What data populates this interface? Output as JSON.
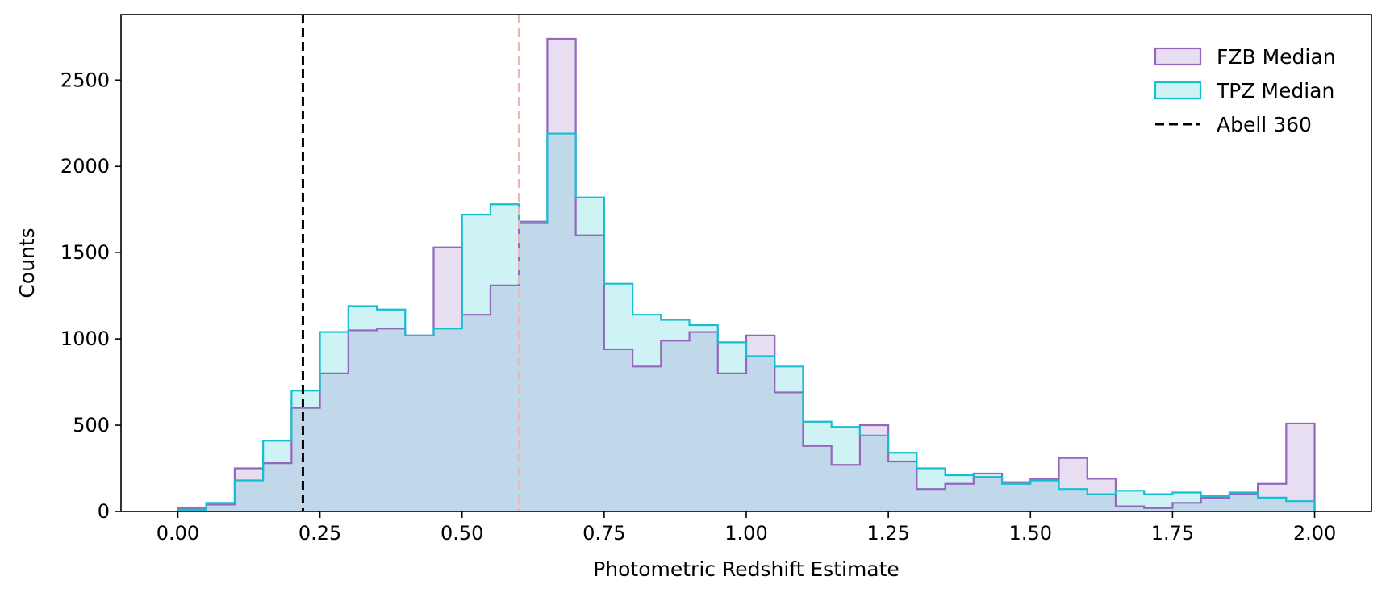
{
  "chart_data": {
    "type": "histogram",
    "title": "",
    "xlabel": "Photometric Redshift Estimate",
    "ylabel": "Counts",
    "xlim": [
      -0.1,
      2.1
    ],
    "ylim": [
      0,
      2880
    ],
    "xticks": [
      "0.00",
      "0.25",
      "0.50",
      "0.75",
      "1.00",
      "1.25",
      "1.50",
      "1.75",
      "2.00"
    ],
    "yticks": [
      "0",
      "500",
      "1000",
      "1500",
      "2000",
      "2500"
    ],
    "bin_edges": [
      0.0,
      0.05,
      0.1,
      0.15,
      0.2,
      0.25,
      0.3,
      0.35,
      0.4,
      0.45,
      0.5,
      0.55,
      0.6,
      0.65,
      0.7,
      0.75,
      0.8,
      0.85,
      0.9,
      0.95,
      1.0,
      1.05,
      1.1,
      1.15,
      1.2,
      1.25,
      1.3,
      1.35,
      1.4,
      1.45,
      1.5,
      1.55,
      1.6,
      1.65,
      1.7,
      1.75,
      1.8,
      1.85,
      1.9,
      1.95,
      2.0
    ],
    "series": [
      {
        "name": "FZB Median",
        "edge_color": "#9467bd",
        "fill_color": "#e8def1",
        "values": [
          20,
          40,
          250,
          280,
          600,
          800,
          1050,
          1060,
          1020,
          1530,
          1140,
          1310,
          1680,
          2740,
          1600,
          940,
          840,
          990,
          1040,
          800,
          1020,
          690,
          380,
          270,
          500,
          290,
          130,
          160,
          220,
          170,
          190,
          310,
          190,
          30,
          20,
          50,
          80,
          100,
          160,
          510
        ]
      },
      {
        "name": "TPZ Median",
        "edge_color": "#17becf",
        "fill_color": "#cff3f5",
        "values": [
          10,
          50,
          180,
          410,
          700,
          1040,
          1190,
          1170,
          1020,
          1060,
          1720,
          1780,
          1670,
          2190,
          1820,
          1320,
          1140,
          1110,
          1080,
          980,
          900,
          840,
          520,
          490,
          440,
          340,
          250,
          210,
          200,
          160,
          180,
          130,
          100,
          120,
          100,
          110,
          90,
          110,
          80,
          60
        ]
      }
    ],
    "overlap_fill_color": "#c1d8ea",
    "vlines": [
      {
        "x": 0.22,
        "name": "Abell 360",
        "color": "#000000",
        "style": "dashed"
      },
      {
        "x": 0.6,
        "name": "",
        "color": "#f4b5b0",
        "style": "dashed"
      }
    ],
    "legend_position": "top-right",
    "grid": false
  }
}
